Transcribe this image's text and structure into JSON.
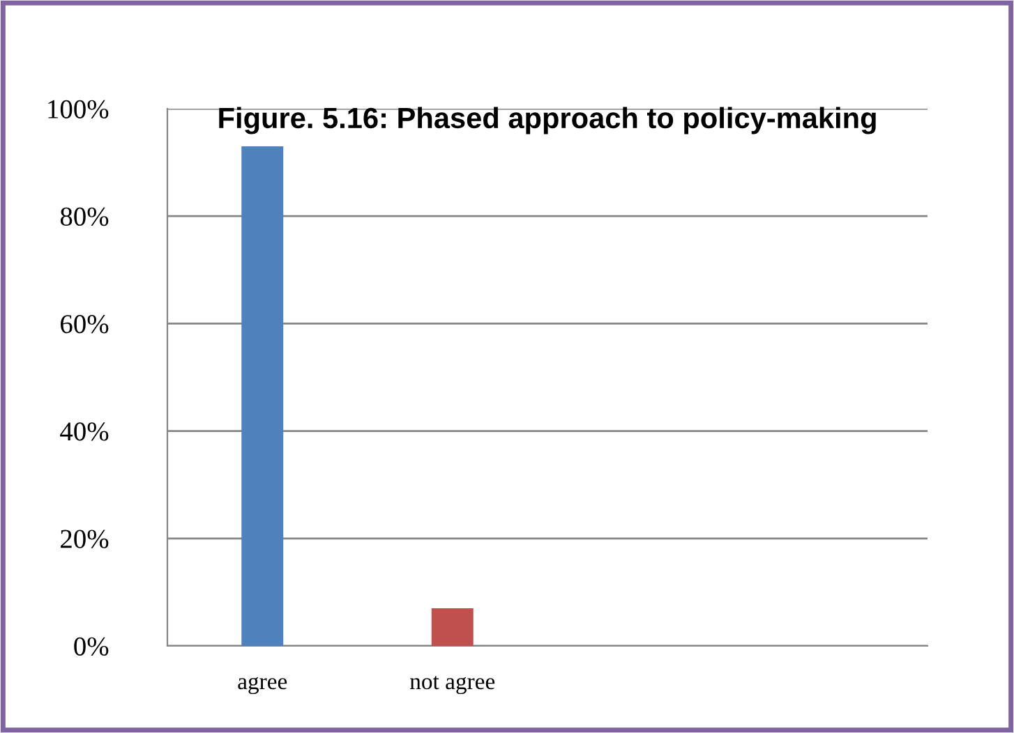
{
  "chart_data": {
    "type": "bar",
    "title": "Figure. 5.16: Phased approach to policy-making",
    "categories": [
      "agree",
      "not agree",
      null,
      null
    ],
    "values": [
      93,
      7,
      null,
      null
    ],
    "colors": [
      "#4f81bd",
      "#c0504d",
      "#4f81bd",
      "#4f81bd"
    ],
    "ylim": [
      0,
      100
    ],
    "yticks": [
      {
        "value": 0,
        "label": "0%"
      },
      {
        "value": 20,
        "label": "20%"
      },
      {
        "value": 40,
        "label": "40%"
      },
      {
        "value": 60,
        "label": "60%"
      },
      {
        "value": 80,
        "label": "80%"
      },
      {
        "value": 100,
        "label": "100%"
      }
    ],
    "grid": "y",
    "legend": false
  }
}
